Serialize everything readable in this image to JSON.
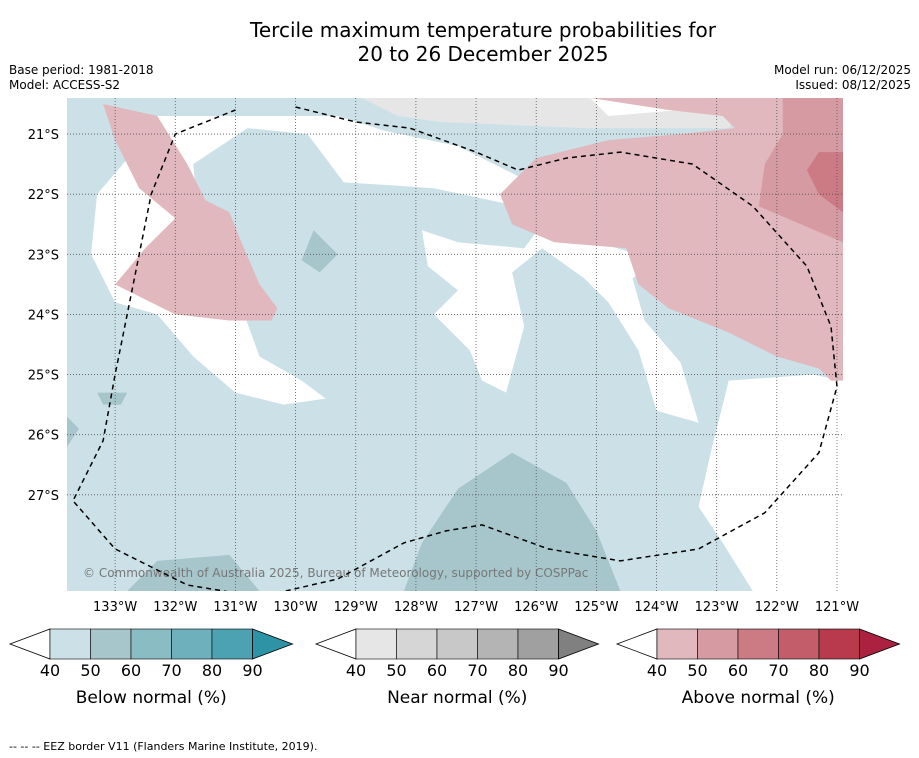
{
  "title_line1": "Tercile maximum temperature probabilities for",
  "title_line2": "20 to 26 December 2025",
  "meta_left": {
    "base_period": "Base period: 1981-2018",
    "model": "Model: ACCESS-S2"
  },
  "meta_right": {
    "model_run": "Model run: 06/12/2025",
    "issued": "Issued: 08/12/2025"
  },
  "copyright": "© Commonwealth of Australia 2025, Bureau of Meteorology, supported by COSPPac",
  "footnote": "--  --  -- EEZ border V11 (Flanders Marine Institute, 2019).",
  "chart_data": {
    "type": "heatmap",
    "x_axis": {
      "range": [
        -133.8,
        -120.9
      ],
      "ticks": [
        -133,
        -132,
        -131,
        -130,
        -129,
        -128,
        -127,
        -126,
        -125,
        -124,
        -123,
        -122,
        -121
      ],
      "tick_labels": [
        "133°W",
        "132°W",
        "131°W",
        "130°W",
        "129°W",
        "128°W",
        "127°W",
        "126°W",
        "125°W",
        "124°W",
        "123°W",
        "122°W",
        "121°W"
      ]
    },
    "y_axis": {
      "range": [
        -28.6,
        -20.4
      ],
      "ticks": [
        -21,
        -22,
        -23,
        -24,
        -25,
        -26,
        -27
      ],
      "tick_labels": [
        "21°S",
        "22°S",
        "23°S",
        "24°S",
        "25°S",
        "26°S",
        "27°S"
      ]
    },
    "grid": true,
    "colorbars": [
      {
        "name": "Below normal (%)",
        "ticks": [
          "40",
          "50",
          "60",
          "70",
          "80",
          "90"
        ],
        "colors": [
          "#cbe1e7",
          "#a6c6cc",
          "#8abcc4",
          "#6eb0bc",
          "#4ca2b1",
          "#2f93a6"
        ]
      },
      {
        "name": "Near normal (%)",
        "ticks": [
          "40",
          "50",
          "60",
          "70",
          "80",
          "90"
        ],
        "colors": [
          "#e6e6e6",
          "#d6d6d6",
          "#c8c8c8",
          "#b4b4b4",
          "#a0a0a0",
          "#808080"
        ]
      },
      {
        "name": "Above normal (%)",
        "ticks": [
          "40",
          "50",
          "60",
          "70",
          "80",
          "90"
        ],
        "colors": [
          "#e0b8bd",
          "#d59aa2",
          "#cc7a84",
          "#c35d6a",
          "#b93a4c",
          "#ac2040"
        ]
      }
    ],
    "regions": [
      {
        "category": "below",
        "level": "40-50",
        "points": [
          [
            -133.8,
            -20.4
          ],
          [
            -120.9,
            -20.4
          ],
          [
            -120.9,
            -28.6
          ],
          [
            -133.8,
            -28.6
          ]
        ]
      },
      {
        "category": "none",
        "level": "<40",
        "points": [
          [
            -132.9,
            -20.7
          ],
          [
            -129.3,
            -20.7
          ],
          [
            -128.5,
            -20.95
          ],
          [
            -127.3,
            -21.2
          ],
          [
            -126.3,
            -21.7
          ],
          [
            -125.9,
            -22.5
          ],
          [
            -126.2,
            -22.9
          ],
          [
            -127.3,
            -22.8
          ],
          [
            -127.9,
            -22.6
          ],
          [
            -127.8,
            -23.2
          ],
          [
            -127.3,
            -23.6
          ],
          [
            -127.7,
            -24.0
          ],
          [
            -127.1,
            -24.6
          ],
          [
            -126.9,
            -25.1
          ],
          [
            -126.5,
            -25.3
          ],
          [
            -126.2,
            -24.2
          ],
          [
            -126.4,
            -23.3
          ],
          [
            -125.9,
            -22.9
          ],
          [
            -125.2,
            -23.4
          ],
          [
            -124.8,
            -23.8
          ],
          [
            -124.3,
            -24.6
          ],
          [
            -124.0,
            -25.6
          ],
          [
            -123.3,
            -25.8
          ],
          [
            -123.6,
            -24.8
          ],
          [
            -124.2,
            -24.1
          ],
          [
            -124.4,
            -23.4
          ],
          [
            -124.0,
            -23.1
          ],
          [
            -125.3,
            -22.7
          ],
          [
            -126.3,
            -22.2
          ],
          [
            -127.7,
            -21.9
          ],
          [
            -129.2,
            -21.8
          ],
          [
            -129.8,
            -21.0
          ],
          [
            -130.8,
            -20.9
          ],
          [
            -131.7,
            -21.5
          ],
          [
            -131.6,
            -22.6
          ],
          [
            -131.0,
            -23.6
          ],
          [
            -130.6,
            -24.7
          ],
          [
            -129.9,
            -25.1
          ],
          [
            -129.5,
            -25.4
          ],
          [
            -130.2,
            -25.5
          ],
          [
            -131.0,
            -25.3
          ],
          [
            -131.7,
            -24.7
          ],
          [
            -132.3,
            -24.0
          ],
          [
            -133.0,
            -23.8
          ],
          [
            -133.4,
            -23.0
          ],
          [
            -133.3,
            -22.0
          ],
          [
            -132.7,
            -21.3
          ]
        ]
      },
      {
        "category": "none",
        "level": "<40",
        "points": [
          [
            -122.8,
            -25.1
          ],
          [
            -121.4,
            -25.0
          ],
          [
            -120.9,
            -25.1
          ],
          [
            -120.9,
            -28.6
          ],
          [
            -122.4,
            -28.6
          ],
          [
            -122.9,
            -27.8
          ],
          [
            -123.3,
            -27.2
          ],
          [
            -123.1,
            -26.3
          ]
        ]
      },
      {
        "category": "none",
        "level": "<40",
        "points": [
          [
            -122.2,
            -20.4
          ],
          [
            -120.9,
            -20.4
          ],
          [
            -120.9,
            -20.6
          ],
          [
            -121.9,
            -20.9
          ]
        ]
      },
      {
        "category": "near",
        "level": "40-50",
        "points": [
          [
            -128.9,
            -20.4
          ],
          [
            -122.8,
            -20.4
          ],
          [
            -122.6,
            -20.6
          ],
          [
            -122.8,
            -20.9
          ],
          [
            -125.2,
            -20.9
          ],
          [
            -127.6,
            -20.8
          ],
          [
            -128.3,
            -20.7
          ]
        ]
      },
      {
        "category": "near",
        "level": "<40",
        "points": [
          [
            -125.1,
            -20.4
          ],
          [
            -124.0,
            -20.4
          ],
          [
            -123.6,
            -20.6
          ],
          [
            -124.8,
            -20.7
          ]
        ]
      },
      {
        "category": "above",
        "level": "40-50",
        "points": [
          [
            -125.1,
            -20.4
          ],
          [
            -120.9,
            -20.4
          ],
          [
            -120.9,
            -25.1
          ],
          [
            -121.1,
            -25.1
          ],
          [
            -121.3,
            -24.9
          ],
          [
            -122.0,
            -24.7
          ],
          [
            -122.8,
            -24.3
          ],
          [
            -123.8,
            -23.9
          ],
          [
            -124.3,
            -23.5
          ],
          [
            -124.5,
            -22.9
          ],
          [
            -125.7,
            -22.8
          ],
          [
            -126.4,
            -22.5
          ],
          [
            -126.6,
            -22.0
          ],
          [
            -126.0,
            -21.4
          ],
          [
            -124.8,
            -21.1
          ],
          [
            -123.6,
            -21.0
          ],
          [
            -122.7,
            -20.9
          ],
          [
            -122.9,
            -20.7
          ],
          [
            -123.8,
            -20.6
          ]
        ]
      },
      {
        "category": "above",
        "level": "50-60",
        "points": [
          [
            -121.9,
            -20.4
          ],
          [
            -120.9,
            -20.4
          ],
          [
            -120.9,
            -22.8
          ],
          [
            -121.6,
            -22.5
          ],
          [
            -122.3,
            -22.2
          ],
          [
            -122.2,
            -21.5
          ],
          [
            -121.9,
            -21.0
          ]
        ]
      },
      {
        "category": "above",
        "level": "60-70",
        "points": [
          [
            -121.3,
            -21.3
          ],
          [
            -120.9,
            -21.3
          ],
          [
            -120.9,
            -22.3
          ],
          [
            -121.3,
            -22.0
          ],
          [
            -121.5,
            -21.6
          ]
        ]
      },
      {
        "category": "above",
        "level": "40-50",
        "points": [
          [
            -133.2,
            -20.5
          ],
          [
            -132.3,
            -20.7
          ],
          [
            -131.8,
            -21.5
          ],
          [
            -131.5,
            -22.1
          ],
          [
            -131.1,
            -22.3
          ],
          [
            -130.9,
            -22.8
          ],
          [
            -130.6,
            -23.5
          ],
          [
            -130.3,
            -23.9
          ],
          [
            -130.4,
            -24.1
          ],
          [
            -131.1,
            -24.1
          ],
          [
            -132.0,
            -24.0
          ],
          [
            -133.0,
            -23.5
          ],
          [
            -132.5,
            -22.9
          ],
          [
            -132.0,
            -22.4
          ],
          [
            -132.6,
            -21.9
          ],
          [
            -133.0,
            -21.1
          ]
        ]
      },
      {
        "category": "below",
        "level": "50-60",
        "points": [
          [
            -128.2,
            -28.6
          ],
          [
            -127.9,
            -27.8
          ],
          [
            -127.3,
            -26.9
          ],
          [
            -126.4,
            -26.3
          ],
          [
            -125.5,
            -26.8
          ],
          [
            -125.0,
            -27.6
          ],
          [
            -124.6,
            -28.6
          ]
        ]
      },
      {
        "category": "below",
        "level": "50-60",
        "points": [
          [
            -132.3,
            -28.1
          ],
          [
            -131.1,
            -28.0
          ],
          [
            -130.6,
            -28.6
          ],
          [
            -132.8,
            -28.6
          ]
        ]
      },
      {
        "category": "below",
        "level": "50-60",
        "points": [
          [
            -129.7,
            -22.6
          ],
          [
            -129.3,
            -23.0
          ],
          [
            -129.6,
            -23.3
          ],
          [
            -129.9,
            -23.1
          ]
        ]
      },
      {
        "category": "below",
        "level": "50-60",
        "points": [
          [
            -133.3,
            -25.3
          ],
          [
            -132.8,
            -25.3
          ],
          [
            -132.9,
            -25.5
          ],
          [
            -133.2,
            -25.5
          ]
        ]
      },
      {
        "category": "below",
        "level": "50-60",
        "points": [
          [
            -133.8,
            -25.7
          ],
          [
            -133.6,
            -25.9
          ],
          [
            -133.8,
            -26.2
          ]
        ]
      }
    ],
    "eez_border": [
      [
        -130.0,
        -20.55
      ],
      [
        -129.0,
        -20.8
      ],
      [
        -128.1,
        -20.9
      ],
      [
        -127.0,
        -21.3
      ],
      [
        -126.3,
        -21.6
      ],
      [
        -125.5,
        -21.4
      ],
      [
        -124.6,
        -21.3
      ],
      [
        -123.4,
        -21.5
      ],
      [
        -122.4,
        -22.2
      ],
      [
        -121.5,
        -23.2
      ],
      [
        -121.1,
        -24.2
      ],
      [
        -121.0,
        -25.2
      ],
      [
        -121.3,
        -26.3
      ],
      [
        -122.2,
        -27.3
      ],
      [
        -123.3,
        -27.9
      ],
      [
        -124.6,
        -28.1
      ],
      [
        -125.8,
        -27.9
      ],
      [
        -126.9,
        -27.5
      ],
      [
        -127.5,
        -27.6
      ],
      [
        -128.2,
        -27.8
      ],
      [
        -129.3,
        -28.4
      ],
      [
        -130.6,
        -28.7
      ],
      [
        -131.8,
        -28.5
      ],
      [
        -133.0,
        -27.9
      ],
      [
        -133.7,
        -27.1
      ],
      [
        -133.2,
        -26.1
      ],
      [
        -133.0,
        -25.0
      ],
      [
        -132.7,
        -23.5
      ],
      [
        -132.4,
        -22.0
      ],
      [
        -132.0,
        -21.0
      ],
      [
        -131.0,
        -20.6
      ]
    ]
  }
}
